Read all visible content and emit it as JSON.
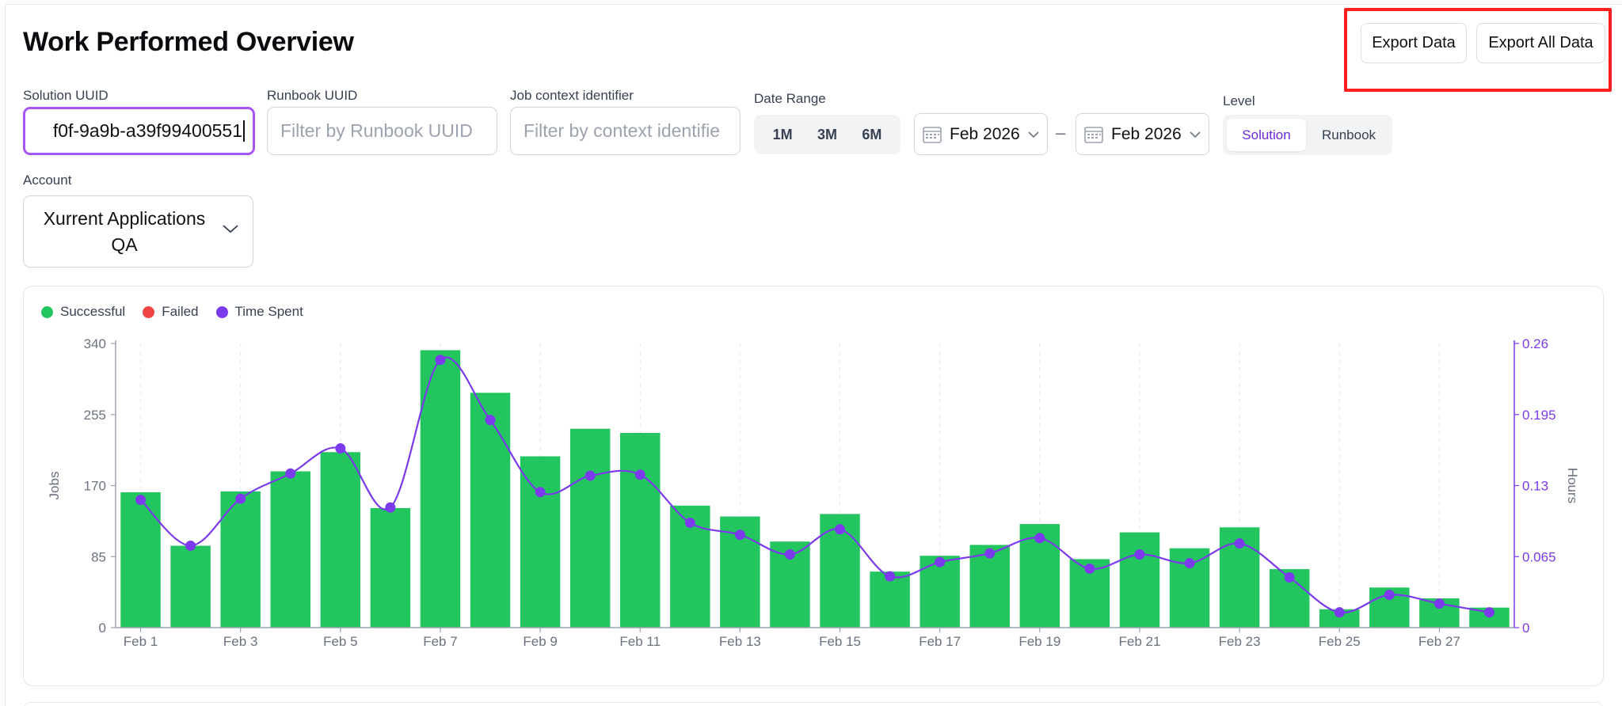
{
  "page": {
    "title": "Work Performed Overview"
  },
  "header": {
    "export_label": "Export Data",
    "export_all_label": "Export All Data"
  },
  "filters": {
    "solution_uuid": {
      "label": "Solution UUID",
      "value": "f0f-9a9b-a39f99400551"
    },
    "runbook_uuid": {
      "label": "Runbook UUID",
      "placeholder": "Filter by Runbook UUID"
    },
    "job_context": {
      "label": "Job context identifier",
      "placeholder": "Filter by context identifie"
    },
    "date_range": {
      "label": "Date Range",
      "options": [
        "1M",
        "3M",
        "6M"
      ],
      "from": "Feb 2026",
      "to": "Feb 2026",
      "separator": "–"
    },
    "level": {
      "label": "Level",
      "options": [
        "Solution",
        "Runbook"
      ],
      "selected": "Solution"
    },
    "account": {
      "label": "Account",
      "value": "Xurrent Applications QA"
    }
  },
  "legend": {
    "successful": "Successful",
    "failed": "Failed",
    "time_spent": "Time Spent"
  },
  "colors": {
    "successful": "#22c55e",
    "failed": "#ef4444",
    "time_spent": "#7c3aed",
    "accent": "#a855f7",
    "highlight_box": "#ff1f1f"
  },
  "chart_data": {
    "type": "bar",
    "title": "",
    "xlabel": "",
    "ylabel": "Jobs",
    "y2label": "Hours",
    "ylim": [
      0,
      340
    ],
    "y2lim": [
      0,
      0.26
    ],
    "yticks": [
      0,
      85,
      170,
      255,
      340
    ],
    "y2ticks": [
      0,
      0.065,
      0.13,
      0.195,
      0.26
    ],
    "categories": [
      "Feb 1",
      "Feb 2",
      "Feb 3",
      "Feb 4",
      "Feb 5",
      "Feb 6",
      "Feb 7",
      "Feb 8",
      "Feb 9",
      "Feb 10",
      "Feb 11",
      "Feb 12",
      "Feb 13",
      "Feb 14",
      "Feb 15",
      "Feb 16",
      "Feb 17",
      "Feb 18",
      "Feb 19",
      "Feb 20",
      "Feb 21",
      "Feb 22",
      "Feb 23",
      "Feb 24",
      "Feb 25",
      "Feb 26",
      "Feb 27",
      "Feb 28"
    ],
    "series": [
      {
        "name": "Successful",
        "axis": "left",
        "kind": "bar",
        "values": [
          162,
          98,
          163,
          187,
          210,
          143,
          332,
          281,
          205,
          238,
          233,
          146,
          133,
          103,
          136,
          67,
          86,
          99,
          124,
          82,
          114,
          95,
          120,
          70,
          22,
          48,
          35,
          24
        ]
      },
      {
        "name": "Failed",
        "axis": "left",
        "kind": "bar",
        "values": [
          0,
          0,
          0,
          0,
          0,
          0,
          0,
          0,
          0,
          0,
          0,
          0,
          0,
          0,
          0,
          0,
          0,
          0,
          0,
          0,
          0,
          0,
          0,
          0,
          0,
          0,
          0,
          0
        ]
      },
      {
        "name": "Time Spent",
        "axis": "right",
        "kind": "line",
        "values": [
          0.117,
          0.075,
          0.118,
          0.141,
          0.164,
          0.11,
          0.245,
          0.19,
          0.124,
          0.139,
          0.14,
          0.096,
          0.085,
          0.067,
          0.09,
          0.047,
          0.06,
          0.068,
          0.082,
          0.054,
          0.067,
          0.059,
          0.077,
          0.046,
          0.014,
          0.03,
          0.022,
          0.014
        ]
      }
    ],
    "xtick_labels": [
      "Feb 1",
      "Feb 3",
      "Feb 5",
      "Feb 7",
      "Feb 9",
      "Feb 11",
      "Feb 13",
      "Feb 15",
      "Feb 17",
      "Feb 19",
      "Feb 21",
      "Feb 23",
      "Feb 25",
      "Feb 27"
    ],
    "grid": true,
    "legend_position": "top-left"
  }
}
